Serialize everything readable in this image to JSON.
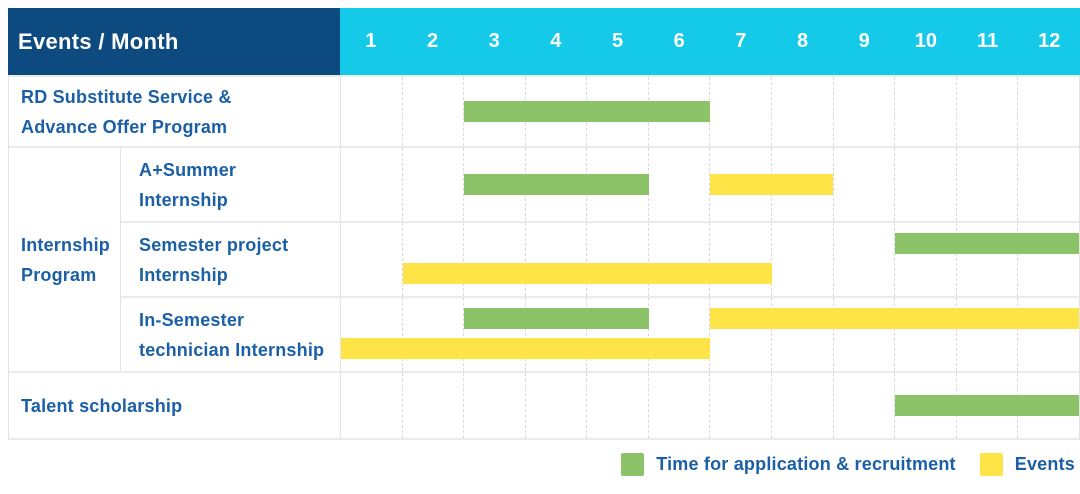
{
  "colors": {
    "header_navy": "#0d4a80",
    "header_cyan": "#15c9e9",
    "application_green": "#8cc268",
    "event_yellow": "#ffe448",
    "label_blue": "#1b5fa6",
    "header_text": "#ffffff",
    "row_separator": "#ebebeb",
    "column_dash": "#d9d9d9"
  },
  "table": {
    "header": {
      "label": "Events / Month",
      "months": [
        "1",
        "2",
        "3",
        "4",
        "5",
        "6",
        "7",
        "8",
        "9",
        "10",
        "11",
        "12"
      ]
    },
    "group_label_lines": [
      "Internship",
      "Program"
    ],
    "rows": [
      {
        "id": "rd-substitute-service",
        "group": null,
        "label_lines": [
          "RD Substitute Service &",
          "Advance Offer Program"
        ],
        "bars": [
          {
            "color": "green",
            "kind": "application",
            "start_month": 3,
            "end_month": 6,
            "lane": "center"
          }
        ]
      },
      {
        "id": "a-plus-summer-internship",
        "group": "Internship Program",
        "label_lines": [
          "A+Summer",
          "Internship"
        ],
        "bars": [
          {
            "color": "green",
            "kind": "application",
            "start_month": 3,
            "end_month": 5,
            "lane": "center"
          },
          {
            "color": "yellow",
            "kind": "event",
            "start_month": 7,
            "end_month": 8,
            "lane": "center"
          }
        ]
      },
      {
        "id": "semester-project-internship",
        "group": "Internship Program",
        "label_lines": [
          "Semester project",
          "Internship"
        ],
        "bars": [
          {
            "color": "green",
            "kind": "application",
            "start_month": 10,
            "end_month": 12,
            "lane": "top"
          },
          {
            "color": "yellow",
            "kind": "event",
            "start_month": 2,
            "end_month": 7,
            "lane": "bottom"
          }
        ]
      },
      {
        "id": "in-semester-technician-internship",
        "group": "Internship Program",
        "label_lines": [
          "In-Semester",
          "technician Internship"
        ],
        "bars": [
          {
            "color": "green",
            "kind": "application",
            "start_month": 3,
            "end_month": 5,
            "lane": "top"
          },
          {
            "color": "yellow",
            "kind": "event",
            "start_month": 7,
            "end_month": 12,
            "lane": "top"
          },
          {
            "color": "yellow",
            "kind": "event",
            "start_month": 1,
            "end_month": 6,
            "lane": "bottom"
          }
        ]
      },
      {
        "id": "talent-scholarship",
        "group": null,
        "label_lines": [
          "Talent scholarship"
        ],
        "bars": [
          {
            "color": "green",
            "kind": "application",
            "start_month": 10,
            "end_month": 12,
            "lane": "center"
          }
        ]
      }
    ]
  },
  "legend": {
    "items": [
      {
        "label": "Time for application & recruitment",
        "color": "#8cc268",
        "kind": "application"
      },
      {
        "label": "Events",
        "color": "#ffe448",
        "kind": "event"
      }
    ]
  },
  "chart_data": {
    "type": "bar",
    "variant": "gantt",
    "title": "Events / Month",
    "xlabel": "Month",
    "x_ticks": [
      1,
      2,
      3,
      4,
      5,
      6,
      7,
      8,
      9,
      10,
      11,
      12
    ],
    "xlim": [
      1,
      12
    ],
    "grid": "vertical-dashed",
    "legend_position": "bottom-right",
    "legend": [
      {
        "label": "Time for application & recruitment",
        "color": "#8cc268"
      },
      {
        "label": "Events",
        "color": "#ffe448"
      }
    ],
    "tasks": [
      {
        "group": null,
        "name": "RD Substitute Service & Advance Offer Program",
        "spans": [
          {
            "kind": "application",
            "start_month": 3,
            "end_month": 6
          }
        ]
      },
      {
        "group": "Internship Program",
        "name": "A+Summer Internship",
        "spans": [
          {
            "kind": "application",
            "start_month": 3,
            "end_month": 5
          },
          {
            "kind": "event",
            "start_month": 7,
            "end_month": 8
          }
        ]
      },
      {
        "group": "Internship Program",
        "name": "Semester project Internship",
        "spans": [
          {
            "kind": "application",
            "start_month": 10,
            "end_month": 12
          },
          {
            "kind": "event",
            "start_month": 2,
            "end_month": 7
          }
        ]
      },
      {
        "group": "Internship Program",
        "name": "In-Semester technician Internship",
        "spans": [
          {
            "kind": "application",
            "start_month": 3,
            "end_month": 5
          },
          {
            "kind": "event",
            "start_month": 7,
            "end_month": 12
          },
          {
            "kind": "event",
            "start_month": 1,
            "end_month": 6
          }
        ]
      },
      {
        "group": null,
        "name": "Talent scholarship",
        "spans": [
          {
            "kind": "application",
            "start_month": 10,
            "end_month": 12
          }
        ]
      }
    ]
  }
}
